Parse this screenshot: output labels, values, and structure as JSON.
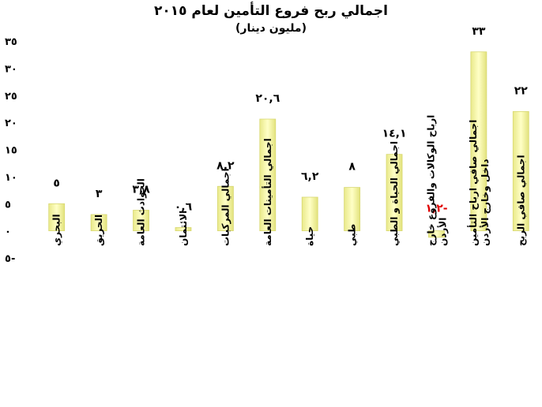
{
  "chart_data": {
    "type": "bar",
    "title": "اجمالي ربح فروع التأمين لعام ٢٠١٥",
    "subtitle": "(مليون دينار)",
    "categories": [
      [
        "البحري"
      ],
      [
        "الحريق"
      ],
      [
        "الحوادث العامة"
      ],
      [
        "الائتمان"
      ],
      [
        "اجمالي المركبات"
      ],
      [
        "اجمالي التأمينات العامة"
      ],
      [
        "حياة"
      ],
      [
        "طبي"
      ],
      [
        "اجمالي الحياة و الطبي"
      ],
      [
        "ارباح الوكالات والفروع خارج",
        "الأردن"
      ],
      [
        "اجمالي صافي ارباح التأمين",
        "داخل وخارج الأردن"
      ],
      [
        "اجمالي صافي الربح"
      ]
    ],
    "values": [
      5,
      3,
      3.8,
      0.6,
      8.2,
      20.6,
      6.2,
      8,
      14.1,
      -1.2,
      33,
      22
    ],
    "data_labels": [
      "٥",
      "٣",
      "٣,٨",
      "٠,٦",
      "٨,٢",
      "٢٠,٦",
      "٦,٢",
      "٨",
      "١٤,١",
      "١,٢-",
      "٣٣",
      "٢٢"
    ],
    "ylim": [
      -5,
      35
    ],
    "yticks": [
      35,
      30,
      25,
      20,
      15,
      10,
      5,
      0,
      -5
    ],
    "ytick_labels": [
      "٣٥",
      "٣٠",
      "٢٥",
      "٢٠",
      "١٥",
      "١٠",
      "٥",
      "٠",
      "٥-"
    ],
    "grid": false,
    "legend": "none",
    "colors": {
      "bar_fill": "#f5f5a0",
      "bar_edge": "#d8d870",
      "label": "#000000",
      "negative_label": "#e00000"
    }
  }
}
